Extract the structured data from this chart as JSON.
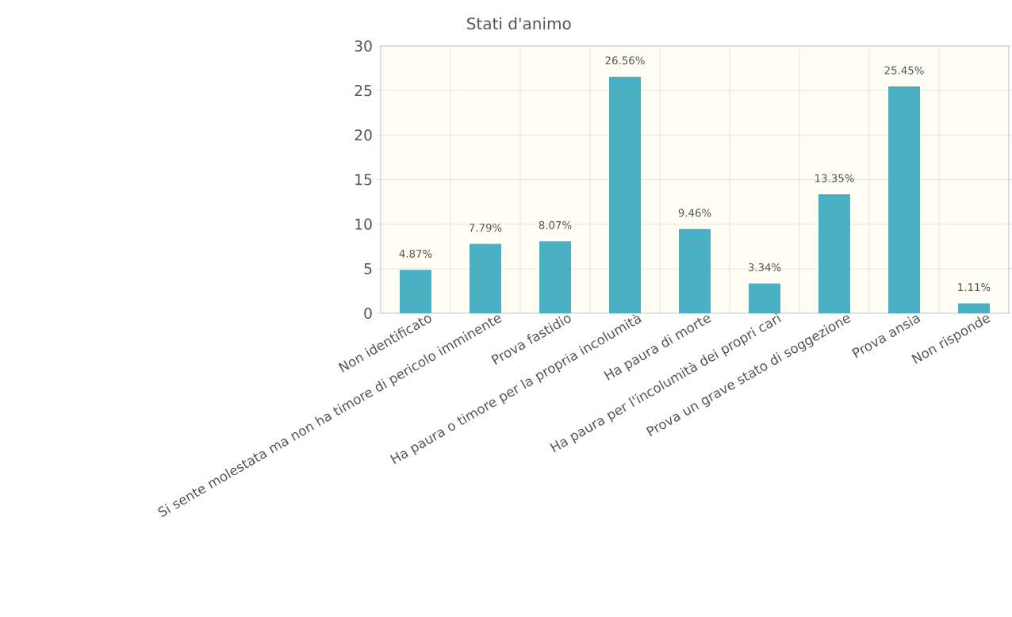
{
  "chart_data": {
    "type": "bar",
    "title": "Stati d'animo",
    "categories": [
      "Non identificato",
      "Si sente molestata ma non ha timore di pericolo imminente",
      "Prova fastidio",
      "Ha paura o timore per la propria incolumità",
      "Ha paura di morte",
      "Ha paura per l'incolumità dei propri cari",
      "Prova un grave stato di soggezione",
      "Prova ansia",
      "Non risponde"
    ],
    "values": [
      4.87,
      7.79,
      8.07,
      26.56,
      9.46,
      3.34,
      13.35,
      25.45,
      1.11
    ],
    "value_labels": [
      "4.87%",
      "7.79%",
      "8.07%",
      "26.56%",
      "9.46%",
      "3.34%",
      "13.35%",
      "25.45%",
      "1.11%"
    ],
    "color": "#4bafc4",
    "ylim": [
      0,
      30
    ],
    "yticks": [
      0,
      5,
      10,
      15,
      20,
      25,
      30
    ],
    "grid": true
  }
}
